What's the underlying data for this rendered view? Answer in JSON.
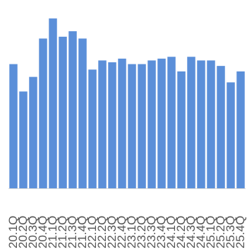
{
  "chart_data": {
    "type": "bar",
    "categories": [
      "20.1Q",
      "20.2Q",
      "20.3Q",
      "20.4Q",
      "21.1Q",
      "21.2Q",
      "21.3Q",
      "21.4Q",
      "22.1Q",
      "22.2Q",
      "22.3Q",
      "22.4Q",
      "23.1Q",
      "23.2Q",
      "23.3Q",
      "23.4Q",
      "24.1Q",
      "24.2Q",
      "24.3Q",
      "24.4Q",
      "25.1Q",
      "25.2Q",
      "25.3Q",
      "25.4Q"
    ],
    "values": [
      68,
      53,
      61,
      82,
      93,
      83,
      86,
      82,
      65,
      70,
      69,
      71,
      68,
      68,
      70,
      71,
      72,
      64,
      72,
      70,
      70,
      67,
      58,
      64
    ],
    "ylim": [
      0,
      100
    ],
    "colors": {
      "bar": "#5b8fd9",
      "axis": "#d8d8d8",
      "tick_label": "#555555"
    },
    "grid": false,
    "legend": "none"
  }
}
